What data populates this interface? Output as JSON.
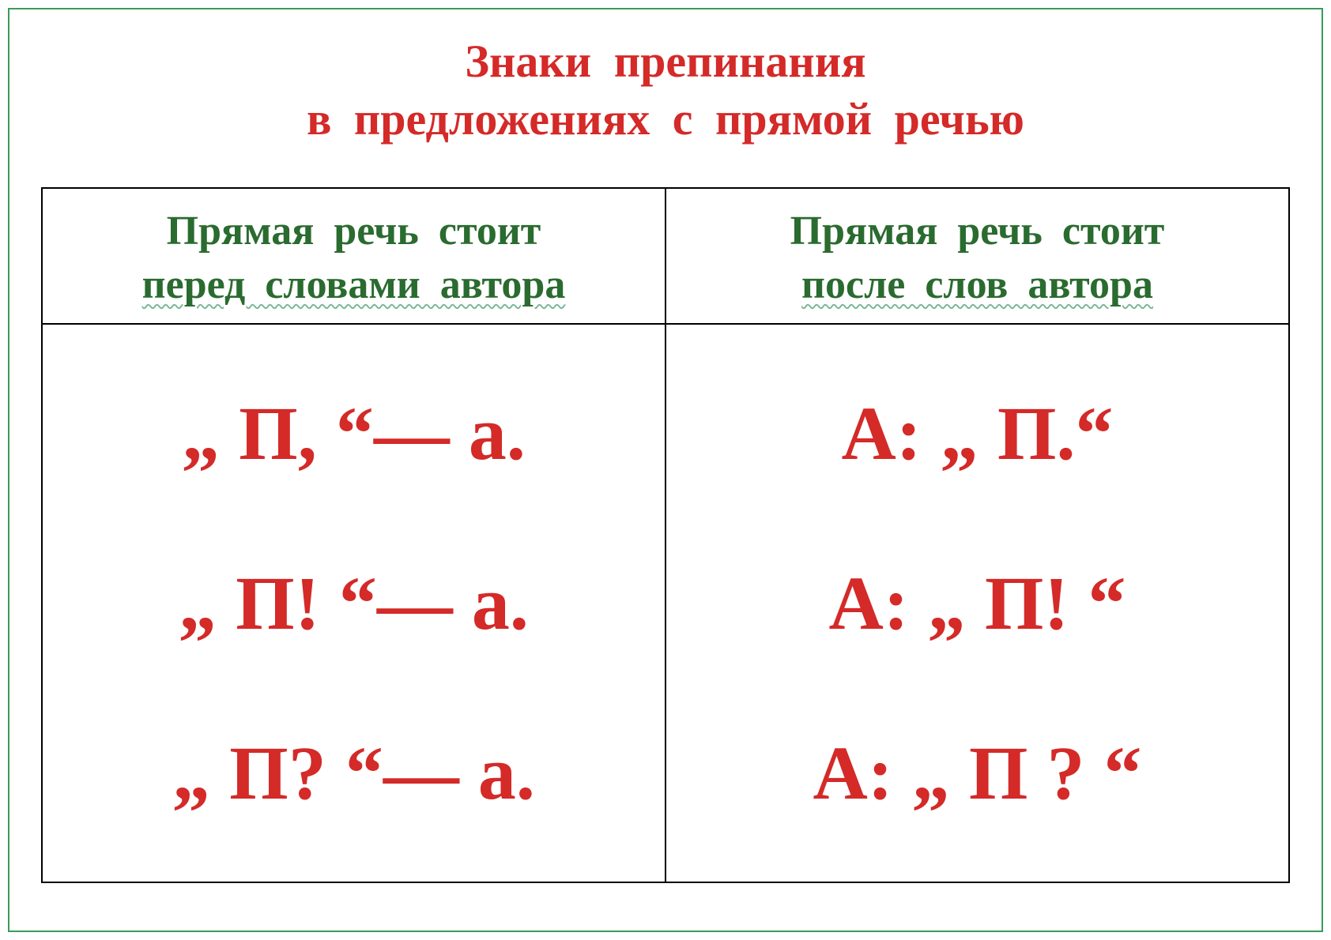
{
  "colors": {
    "border_outer": "#3b9b5a",
    "border_table": "#000000",
    "text_red": "#d42a28",
    "text_green": "#2a6b2f",
    "underline_wavy": "#7db89a",
    "background": "#ffffff"
  },
  "typography": {
    "font_family": "Times New Roman",
    "title_fontsize": 58,
    "header_fontsize": 52,
    "formula_fontsize": 96,
    "title_word_spacing": 14,
    "header_word_spacing": 12
  },
  "title": {
    "line1": "Знаки   препинания",
    "line2": "в   предложениях   с   прямой   речью"
  },
  "columns": {
    "left": {
      "header_line1": "Прямая  речь  стоит",
      "header_line2": "перед  словами  автора",
      "rows": [
        "„ П, “— а.",
        "„ П! “— а.",
        "„ П? “— а."
      ]
    },
    "right": {
      "header_line1": "Прямая  речь  стоит",
      "header_line2": "после  слов  автора",
      "rows": [
        "А: „ П.“",
        "А: „ П! “",
        "А: „ П ? “"
      ]
    }
  }
}
